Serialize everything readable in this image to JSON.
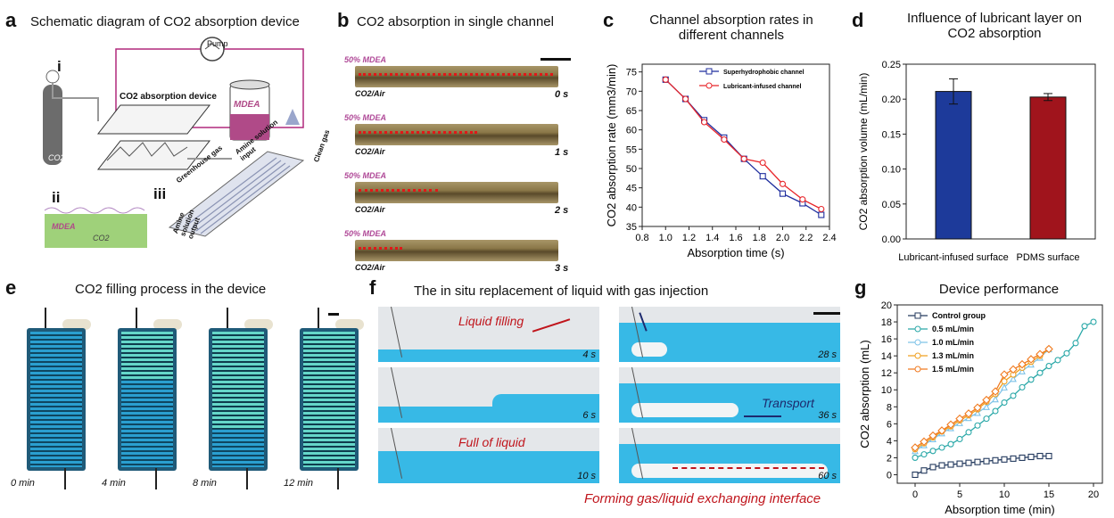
{
  "panels": {
    "a": {
      "letter": "a",
      "title": "Schematic diagram of CO2 absorption device",
      "labels": {
        "i": "i",
        "ii": "ii",
        "iii": "iii",
        "pump": "Pump",
        "device": "CO2 absorption device",
        "mdea": "MDEA",
        "co2": "CO2",
        "mdea2": "MDEA",
        "co2_2": "CO2",
        "greenhouse": "Greenhouse gas",
        "amine_input": "Amine solution input",
        "clean_gas": "Clean gas",
        "amine_output": "Amine solution output"
      }
    },
    "b": {
      "letter": "b",
      "title": "CO2 absorption in single channel",
      "frames": [
        {
          "top": "50% MDEA",
          "bottom": "CO2/Air",
          "time": "0 s",
          "fill": 0.98
        },
        {
          "top": "50% MDEA",
          "bottom": "CO2/Air",
          "time": "1 s",
          "fill": 0.6
        },
        {
          "top": "50% MDEA",
          "bottom": "CO2/Air",
          "time": "2 s",
          "fill": 0.4
        },
        {
          "top": "50% MDEA",
          "bottom": "CO2/Air",
          "time": "3 s",
          "fill": 0.22
        }
      ]
    },
    "c": {
      "letter": "c",
      "title_line1": "Channel absorption rates in",
      "title_line2": "different channels"
    },
    "d": {
      "letter": "d",
      "title_line1": "Influence of lubricant layer on",
      "title_line2": "CO2 absorption"
    },
    "e": {
      "letter": "e",
      "title": "CO2 filling process in the device",
      "frames": [
        {
          "time": "0 min",
          "fill": 0.0
        },
        {
          "time": "4 min",
          "fill": 0.35
        },
        {
          "time": "8 min",
          "fill": 0.72
        },
        {
          "time": "12 min",
          "fill": 1.0
        }
      ]
    },
    "f": {
      "letter": "f",
      "title": "The in situ replacement of liquid with gas injection",
      "frames_left": [
        {
          "time": "4 s",
          "caption": "Liquid filling"
        },
        {
          "time": "6 s",
          "caption": ""
        },
        {
          "time": "10 s",
          "caption": "Full of liquid"
        }
      ],
      "frames_right": [
        {
          "time": "28 s",
          "caption": ""
        },
        {
          "time": "36 s",
          "caption": "Transport"
        },
        {
          "time": "60 s",
          "caption": ""
        }
      ],
      "bottom_caption": "Forming gas/liquid exchanging interface"
    },
    "g": {
      "letter": "g",
      "title": "Device performance"
    }
  },
  "chart_data": [
    {
      "id": "c",
      "type": "line",
      "xlabel": "Absorption time (s)",
      "ylabel": "CO2 absorption rate (mm3/min)",
      "xlim": [
        0.8,
        2.4
      ],
      "ylim": [
        35,
        77
      ],
      "xticks": [
        "0.8",
        "1.0",
        "1.2",
        "1.4",
        "1.6",
        "1.8",
        "2.0",
        "2.2",
        "2.4"
      ],
      "yticks": [
        "35",
        "40",
        "45",
        "50",
        "55",
        "60",
        "65",
        "70",
        "75"
      ],
      "legend_position": "top-right",
      "series": [
        {
          "name": "Superhydrophobic channel",
          "color": "#1f2e9e",
          "marker": "square",
          "x": [
            1.0,
            1.17,
            1.33,
            1.5,
            1.67,
            1.83,
            2.0,
            2.17,
            2.33
          ],
          "y": [
            73,
            68,
            62.5,
            58,
            52.5,
            48,
            43.5,
            41,
            38
          ]
        },
        {
          "name": "Lubricant-infused channel",
          "color": "#e8262b",
          "marker": "circle",
          "x": [
            1.0,
            1.17,
            1.33,
            1.5,
            1.67,
            1.83,
            2.0,
            2.17,
            2.33
          ],
          "y": [
            73,
            68,
            62,
            57.5,
            52.5,
            51.5,
            46,
            42,
            39.5
          ]
        }
      ]
    },
    {
      "id": "d",
      "type": "bar",
      "xlabel": "",
      "ylabel": "CO2 absorption volume (mL/min)",
      "ylim": [
        0,
        0.25
      ],
      "yticks": [
        "0.00",
        "0.05",
        "0.10",
        "0.15",
        "0.20",
        "0.25"
      ],
      "categories": [
        "Lubricant-infused surface",
        "PDMS surface"
      ],
      "values": [
        0.211,
        0.203
      ],
      "errors": [
        0.018,
        0.005
      ],
      "colors": [
        "#1d3a9a",
        "#a0141c"
      ]
    },
    {
      "id": "g",
      "type": "line",
      "xlabel": "Absorption time (min)",
      "ylabel": "CO2 absorption (mL)",
      "xlim": [
        -2,
        21
      ],
      "ylim": [
        -1,
        20
      ],
      "xticks": [
        "0",
        "5",
        "10",
        "15",
        "20"
      ],
      "yticks": [
        "0",
        "2",
        "4",
        "6",
        "8",
        "10",
        "12",
        "14",
        "16",
        "18",
        "20"
      ],
      "legend_position": "top-left",
      "series": [
        {
          "name": "Control group",
          "color": "#243a5e",
          "marker": "square",
          "x": [
            0,
            1,
            2,
            3,
            4,
            5,
            6,
            7,
            8,
            9,
            10,
            11,
            12,
            13,
            14,
            15
          ],
          "y": [
            0,
            0.5,
            0.9,
            1.1,
            1.2,
            1.3,
            1.4,
            1.5,
            1.6,
            1.7,
            1.8,
            1.9,
            2.0,
            2.1,
            2.2,
            2.2
          ]
        },
        {
          "name": "0.5 mL/min",
          "color": "#2aa8a8",
          "marker": "circle",
          "x": [
            0,
            1,
            2,
            3,
            4,
            5,
            6,
            7,
            8,
            9,
            10,
            11,
            12,
            13,
            14,
            15,
            16,
            17,
            18,
            19,
            20
          ],
          "y": [
            2,
            2.4,
            2.8,
            3.2,
            3.6,
            4.2,
            5,
            5.8,
            6.6,
            7.5,
            8.5,
            9.3,
            10.3,
            11.2,
            12,
            12.8,
            13.5,
            14.3,
            15.5,
            17.5,
            18
          ]
        },
        {
          "name": "1.0 mL/min",
          "color": "#7fc3e8",
          "marker": "triangle",
          "x": [
            0,
            1,
            2,
            3,
            4,
            5,
            6,
            7,
            8,
            9,
            10,
            11,
            12,
            13,
            14,
            15
          ],
          "y": [
            2.8,
            3.5,
            4.2,
            4.9,
            5.5,
            6.1,
            6.7,
            7.3,
            8,
            8.9,
            10.3,
            11.3,
            12.2,
            13,
            13.8,
            14.8
          ]
        },
        {
          "name": "1.3 mL/min",
          "color": "#f0a020",
          "marker": "circle",
          "x": [
            0,
            1,
            2,
            3,
            4,
            5,
            6,
            7,
            8,
            9,
            10,
            11,
            12,
            13,
            14,
            15
          ],
          "y": [
            3,
            3.7,
            4.4,
            5.1,
            5.7,
            6.4,
            7,
            7.7,
            8.6,
            9.5,
            11,
            11.8,
            12.6,
            13.3,
            14,
            14.8
          ]
        },
        {
          "name": "1.5 mL/min",
          "color": "#f07a20",
          "marker": "diamond",
          "x": [
            0,
            1,
            2,
            3,
            4,
            5,
            6,
            7,
            8,
            9,
            10,
            11,
            12,
            13,
            14,
            15
          ],
          "y": [
            3.2,
            3.9,
            4.6,
            5.2,
            5.9,
            6.6,
            7.2,
            7.9,
            8.8,
            9.8,
            11.8,
            12.4,
            13,
            13.6,
            14.2,
            14.8
          ]
        }
      ]
    }
  ]
}
